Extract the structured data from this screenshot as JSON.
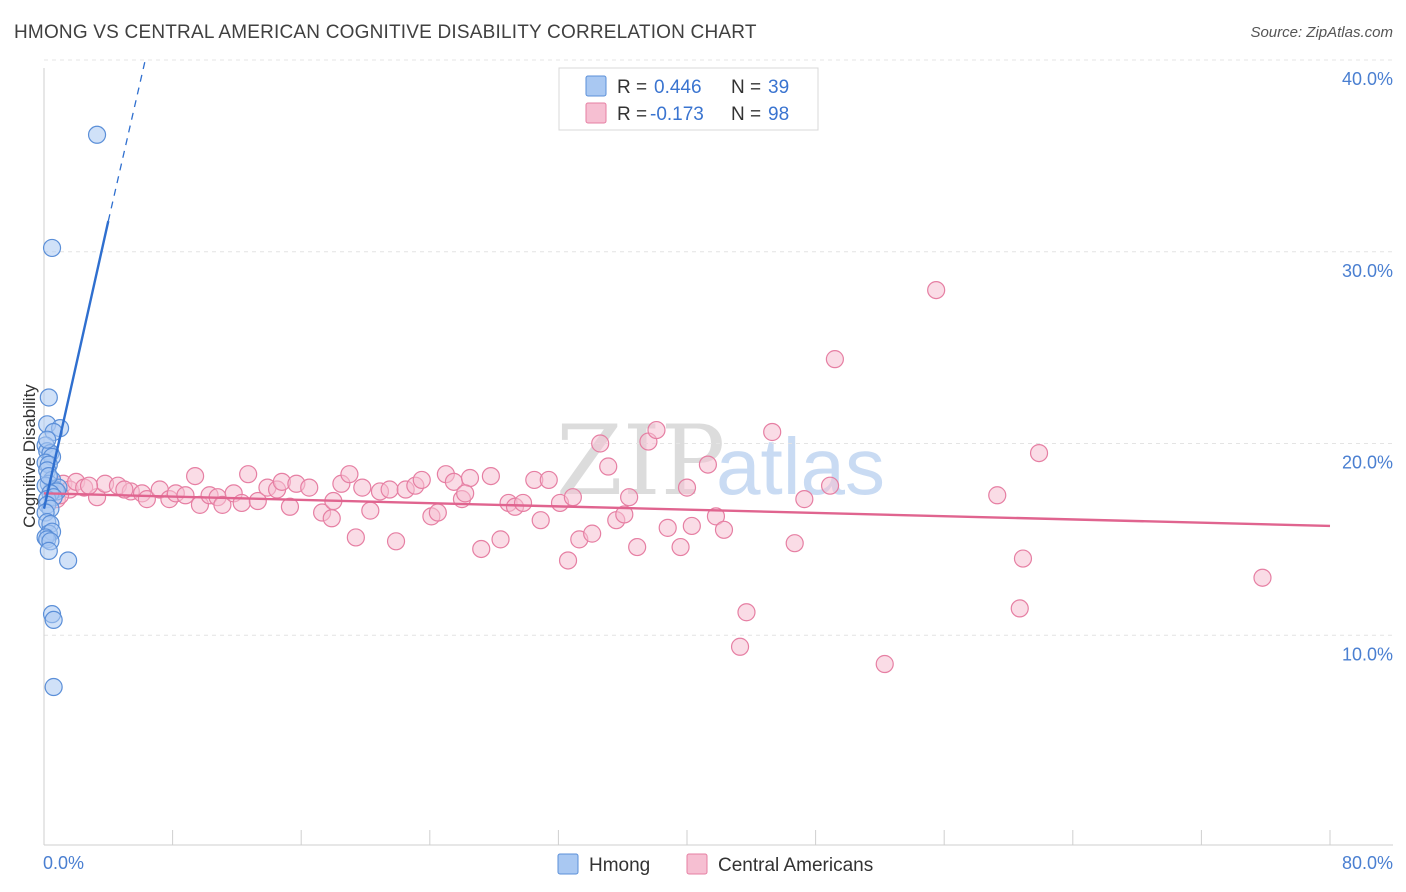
{
  "title": "HMONG VS CENTRAL AMERICAN COGNITIVE DISABILITY CORRELATION CHART",
  "source": "Source: ZipAtlas.com",
  "watermark": {
    "zip": "ZIP",
    "atlas": "atlas"
  },
  "colors": {
    "hmong_fill": "#a9c8f2",
    "hmong_stroke": "#5b8fd8",
    "hmong_line": "#2f6fcf",
    "central_fill": "#f6bfd2",
    "central_stroke": "#e67fa3",
    "central_line": "#e0648f",
    "grid": "#e4e4e4",
    "axis_text": "#4a7fd1"
  },
  "legend_top": [
    {
      "r_label": "R =",
      "r_value": "0.446",
      "n_label": "N =",
      "n_value": "39",
      "series": "hmong"
    },
    {
      "r_label": "R =",
      "r_value": "-0.173",
      "n_label": "N =",
      "n_value": "98",
      "series": "central"
    }
  ],
  "legend_bottom": [
    {
      "label": "Hmong",
      "series": "hmong"
    },
    {
      "label": "Central Americans",
      "series": "central"
    }
  ],
  "chart_data": {
    "type": "scatter",
    "title": "HMONG VS CENTRAL AMERICAN COGNITIVE DISABILITY CORRELATION CHART",
    "xlabel": "",
    "ylabel": "Cognitive Disability",
    "xlim": [
      0,
      80
    ],
    "ylim": [
      0,
      40
    ],
    "x_tick_labels": [
      "0.0%",
      "80.0%"
    ],
    "y_ticks": [
      10,
      20,
      30,
      40
    ],
    "y_tick_labels": [
      "10.0%",
      "20.0%",
      "30.0%",
      "40.0%"
    ],
    "grid": true,
    "series": [
      {
        "name": "Hmong",
        "key": "hmong",
        "points": [
          [
            3.3,
            36.1
          ],
          [
            0.5,
            30.2
          ],
          [
            0.3,
            22.4
          ],
          [
            0.2,
            21.0
          ],
          [
            1.0,
            20.8
          ],
          [
            0.6,
            20.6
          ],
          [
            0.1,
            19.9
          ],
          [
            0.2,
            19.6
          ],
          [
            0.4,
            19.5
          ],
          [
            0.5,
            19.3
          ],
          [
            0.1,
            19.0
          ],
          [
            0.3,
            18.9
          ],
          [
            0.2,
            18.6
          ],
          [
            0.5,
            18.1
          ],
          [
            0.3,
            17.9
          ],
          [
            0.1,
            17.8
          ],
          [
            0.7,
            17.6
          ],
          [
            0.9,
            17.7
          ],
          [
            0.8,
            17.5
          ],
          [
            0.4,
            17.4
          ],
          [
            0.2,
            17.1
          ],
          [
            0.6,
            17.2
          ],
          [
            0.2,
            16.8
          ],
          [
            0.4,
            16.6
          ],
          [
            0.1,
            16.4
          ],
          [
            0.2,
            15.9
          ],
          [
            0.4,
            15.8
          ],
          [
            0.3,
            15.3
          ],
          [
            0.5,
            15.4
          ],
          [
            0.1,
            15.1
          ],
          [
            0.2,
            15.0
          ],
          [
            0.4,
            14.9
          ],
          [
            0.3,
            14.4
          ],
          [
            1.5,
            13.9
          ],
          [
            0.5,
            11.1
          ],
          [
            0.6,
            10.8
          ],
          [
            0.6,
            7.3
          ],
          [
            0.2,
            20.2
          ],
          [
            0.3,
            18.3
          ]
        ],
        "trend": {
          "solid": [
            [
              0.0,
              16.6
            ],
            [
              4.0,
              31.6
            ]
          ],
          "dashed": [
            [
              4.0,
              31.6
            ],
            [
              6.3,
              40.0
            ]
          ]
        }
      },
      {
        "name": "Central Americans",
        "key": "central",
        "points": [
          [
            0.5,
            17.5
          ],
          [
            0.8,
            17.1
          ],
          [
            1.2,
            17.9
          ],
          [
            1.6,
            17.6
          ],
          [
            2.0,
            18.0
          ],
          [
            2.5,
            17.7
          ],
          [
            3.3,
            17.2
          ],
          [
            3.8,
            17.9
          ],
          [
            4.6,
            17.8
          ],
          [
            5.4,
            17.5
          ],
          [
            6.1,
            17.4
          ],
          [
            6.4,
            17.1
          ],
          [
            7.2,
            17.6
          ],
          [
            7.8,
            17.1
          ],
          [
            8.2,
            17.4
          ],
          [
            8.8,
            17.3
          ],
          [
            9.4,
            18.3
          ],
          [
            9.7,
            16.8
          ],
          [
            10.3,
            17.3
          ],
          [
            10.8,
            17.2
          ],
          [
            11.1,
            16.8
          ],
          [
            11.8,
            17.4
          ],
          [
            12.3,
            16.9
          ],
          [
            12.7,
            18.4
          ],
          [
            13.3,
            17.0
          ],
          [
            13.9,
            17.7
          ],
          [
            14.5,
            17.6
          ],
          [
            14.8,
            18.0
          ],
          [
            15.3,
            16.7
          ],
          [
            15.7,
            17.9
          ],
          [
            16.5,
            17.7
          ],
          [
            17.3,
            16.4
          ],
          [
            17.9,
            16.1
          ],
          [
            18.5,
            17.9
          ],
          [
            19.0,
            18.4
          ],
          [
            19.4,
            15.1
          ],
          [
            19.8,
            17.7
          ],
          [
            20.3,
            16.5
          ],
          [
            20.9,
            17.5
          ],
          [
            21.5,
            17.6
          ],
          [
            21.9,
            14.9
          ],
          [
            22.5,
            17.6
          ],
          [
            23.1,
            17.8
          ],
          [
            23.5,
            18.1
          ],
          [
            24.1,
            16.2
          ],
          [
            24.5,
            16.4
          ],
          [
            25.0,
            18.4
          ],
          [
            25.5,
            18.0
          ],
          [
            26.0,
            17.1
          ],
          [
            26.5,
            18.2
          ],
          [
            27.2,
            14.5
          ],
          [
            27.8,
            18.3
          ],
          [
            28.4,
            15.0
          ],
          [
            28.9,
            16.9
          ],
          [
            29.3,
            16.7
          ],
          [
            29.8,
            16.9
          ],
          [
            30.5,
            18.1
          ],
          [
            30.9,
            16.0
          ],
          [
            31.4,
            18.1
          ],
          [
            32.1,
            16.9
          ],
          [
            32.6,
            13.9
          ],
          [
            32.9,
            17.2
          ],
          [
            33.3,
            15.0
          ],
          [
            34.1,
            15.3
          ],
          [
            34.6,
            20.0
          ],
          [
            35.1,
            18.8
          ],
          [
            35.6,
            16.0
          ],
          [
            36.1,
            16.3
          ],
          [
            36.4,
            17.2
          ],
          [
            36.9,
            14.6
          ],
          [
            37.6,
            20.1
          ],
          [
            38.1,
            20.7
          ],
          [
            38.8,
            15.6
          ],
          [
            39.6,
            14.6
          ],
          [
            40.0,
            17.7
          ],
          [
            40.3,
            15.7
          ],
          [
            41.3,
            18.9
          ],
          [
            41.8,
            16.2
          ],
          [
            42.3,
            15.5
          ],
          [
            43.3,
            9.4
          ],
          [
            43.7,
            11.2
          ],
          [
            45.3,
            20.6
          ],
          [
            46.7,
            14.8
          ],
          [
            47.3,
            17.1
          ],
          [
            48.9,
            17.8
          ],
          [
            49.2,
            24.4
          ],
          [
            52.3,
            8.5
          ],
          [
            55.5,
            28.0
          ],
          [
            59.3,
            17.3
          ],
          [
            60.7,
            11.4
          ],
          [
            60.9,
            14.0
          ],
          [
            61.9,
            19.5
          ],
          [
            75.8,
            13.0
          ],
          [
            1.0,
            17.3
          ],
          [
            2.8,
            17.8
          ],
          [
            5.0,
            17.6
          ],
          [
            18.0,
            17.0
          ],
          [
            26.2,
            17.4
          ]
        ],
        "trend": {
          "solid": [
            [
              0.0,
              17.4
            ],
            [
              80.0,
              15.7
            ]
          ]
        }
      }
    ]
  }
}
